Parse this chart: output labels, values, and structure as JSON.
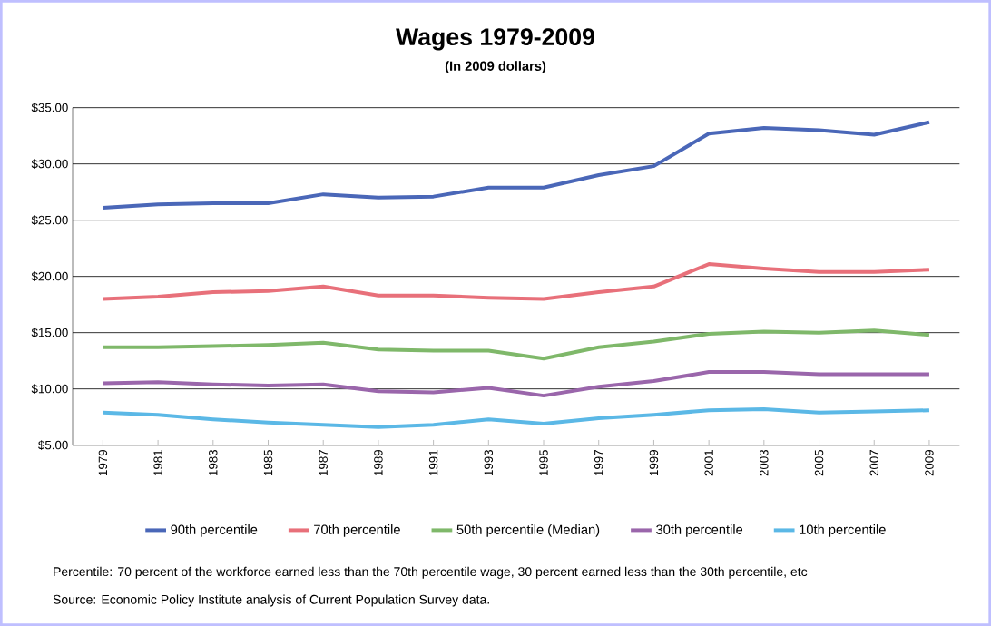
{
  "chart_data": {
    "type": "line",
    "title": "Wages 1979-2009",
    "subtitle": "(In 2009 dollars)",
    "categories": [
      "1979",
      "1981",
      "1983",
      "1985",
      "1987",
      "1989",
      "1991",
      "1993",
      "1995",
      "1997",
      "1999",
      "2001",
      "2003",
      "2005",
      "2007",
      "2009"
    ],
    "series": [
      {
        "name": "90th percentile",
        "color": "#4a67b8",
        "values": [
          26.1,
          26.4,
          26.5,
          26.5,
          27.3,
          27.0,
          27.1,
          27.9,
          27.9,
          29.0,
          29.8,
          32.7,
          33.2,
          33.0,
          32.6,
          33.7
        ]
      },
      {
        "name": "70th percentile",
        "color": "#e8707a",
        "values": [
          18.0,
          18.2,
          18.6,
          18.7,
          19.1,
          18.3,
          18.3,
          18.1,
          18.0,
          18.6,
          19.1,
          21.1,
          20.7,
          20.4,
          20.4,
          20.6
        ]
      },
      {
        "name": "50th percentile (Median)",
        "color": "#7fb86a",
        "values": [
          13.7,
          13.7,
          13.8,
          13.9,
          14.1,
          13.5,
          13.4,
          13.4,
          12.7,
          13.7,
          14.2,
          14.9,
          15.1,
          15.0,
          15.2,
          14.8
        ]
      },
      {
        "name": "30th percentile",
        "color": "#9a66ab",
        "values": [
          10.5,
          10.6,
          10.4,
          10.3,
          10.4,
          9.8,
          9.7,
          10.1,
          9.4,
          10.2,
          10.7,
          11.5,
          11.5,
          11.3,
          11.3,
          11.3
        ]
      },
      {
        "name": "10th percentile",
        "color": "#5bb8e6",
        "values": [
          7.9,
          7.7,
          7.3,
          7.0,
          6.8,
          6.6,
          6.8,
          7.3,
          6.9,
          7.4,
          7.7,
          8.1,
          8.2,
          7.9,
          8.0,
          8.1
        ]
      }
    ],
    "ylim": [
      5,
      35
    ],
    "yticks": [
      {
        "value": 5,
        "label": "$5.00"
      },
      {
        "value": 10,
        "label": "$10.00"
      },
      {
        "value": 15,
        "label": "$15.00"
      },
      {
        "value": 20,
        "label": "$20.00"
      },
      {
        "value": 25,
        "label": "$25.00"
      },
      {
        "value": 30,
        "label": "$30.00"
      },
      {
        "value": 35,
        "label": "$35.00"
      }
    ],
    "grid": "y",
    "legend": "bottom",
    "annotations": [
      "Percentile: 70 percent of the workforce earned less than the 70th percentile wage, 30 percent earned less than the 30th percentile, etc",
      "Source: Economic Policy Institute analysis of Current Population Survey data."
    ]
  }
}
